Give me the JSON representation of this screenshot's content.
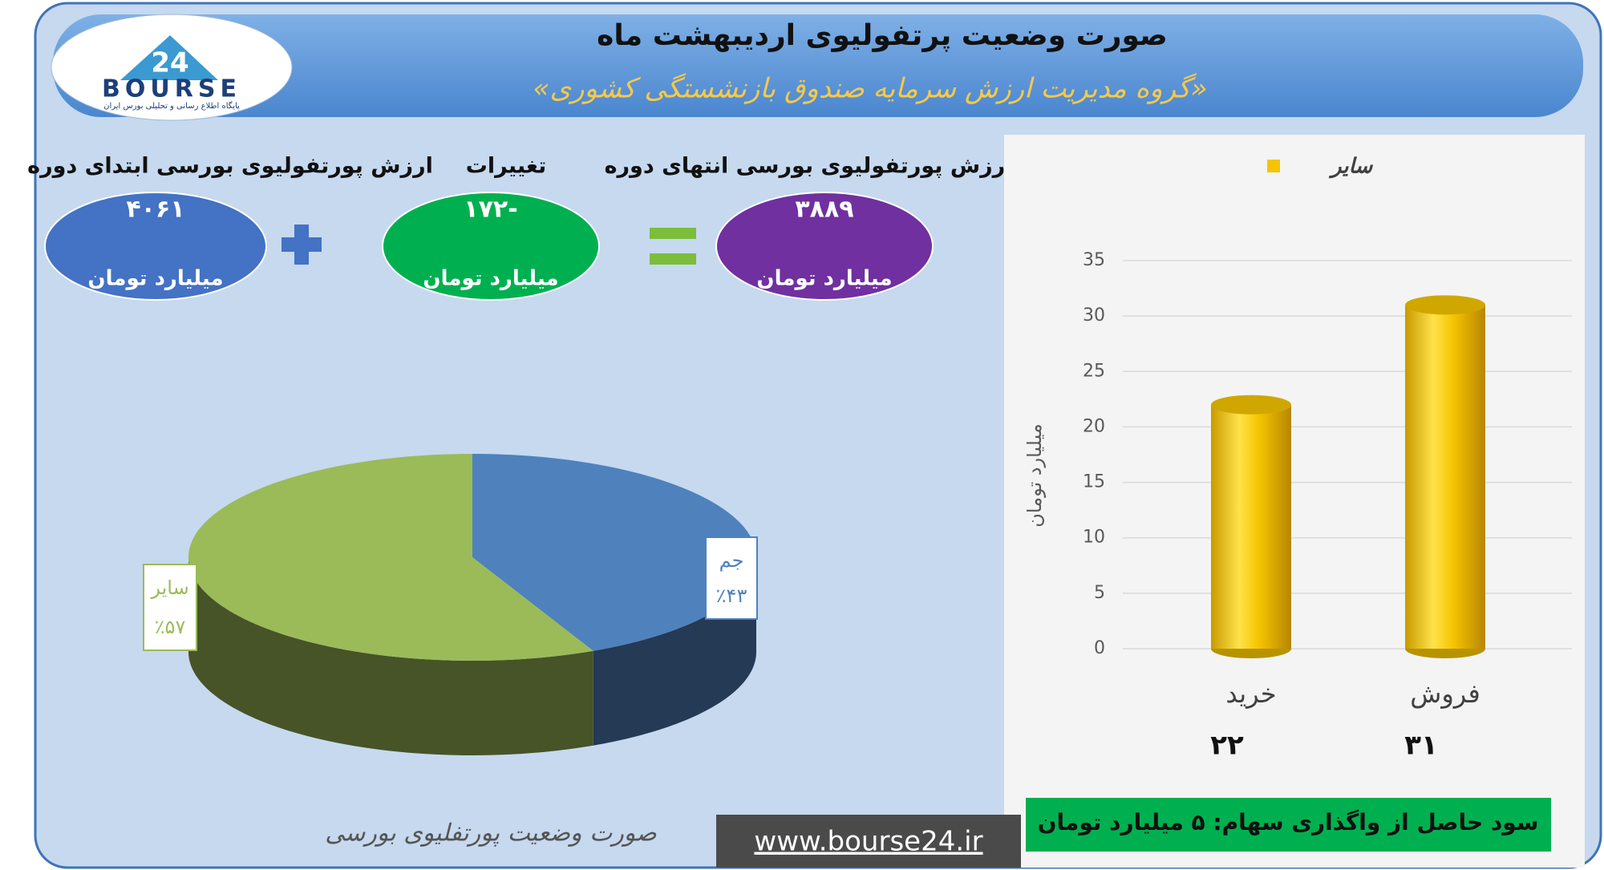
{
  "header": {
    "title": "صورت وضعیت پرتفولیوی اردیبهشت ماه",
    "subtitle": "«گروه مدیریت ارزش سرمایه صندوق بازنشستگی کشوری»"
  },
  "logo": {
    "number": "24",
    "brand": "BOURSE",
    "tagline": "پایگاه اطلاع رسانی و تحلیلی بورس ایران"
  },
  "summary": [
    {
      "label": "ارزش پورتفولیوی بورسی ابتدای دوره",
      "value": "۴۰۶۱",
      "unit": "میلیارد تومان"
    },
    {
      "label": "تغییرات",
      "value": "-۱۷۲",
      "unit": "میلیارد تومان"
    },
    {
      "label": "ارزش پورتفولیوی بورسی انتهای دوره",
      "value": "۳۸۸۹",
      "unit": "میلیارد تومان"
    }
  ],
  "chart_data": [
    {
      "type": "pie",
      "title": "صورت وضعیت پورتفلیوی بورسی",
      "categories": [
        "جم",
        "سایر"
      ],
      "values": [
        43,
        57
      ],
      "value_labels": [
        "٪۴۳",
        "٪۵۷"
      ],
      "colors": [
        "#4f81bd",
        "#9bbb59"
      ]
    },
    {
      "type": "bar",
      "ylabel": "میلیارد تومان",
      "categories": [
        "خرید",
        "فروش"
      ],
      "series": [
        {
          "name": "سایر",
          "color": "#f5c400",
          "values": [
            22,
            31
          ],
          "value_labels": [
            "۲۲",
            "۳۱"
          ]
        }
      ],
      "ylim": [
        0,
        35
      ],
      "yticks": [
        0,
        5,
        10,
        15,
        20,
        25,
        30,
        35
      ],
      "grid": true,
      "legend": "top"
    }
  ],
  "footer": {
    "note": "سود حاصل از واگذاری سهام: ۵ میلیارد تومان",
    "url": "www.bourse24.ir"
  }
}
